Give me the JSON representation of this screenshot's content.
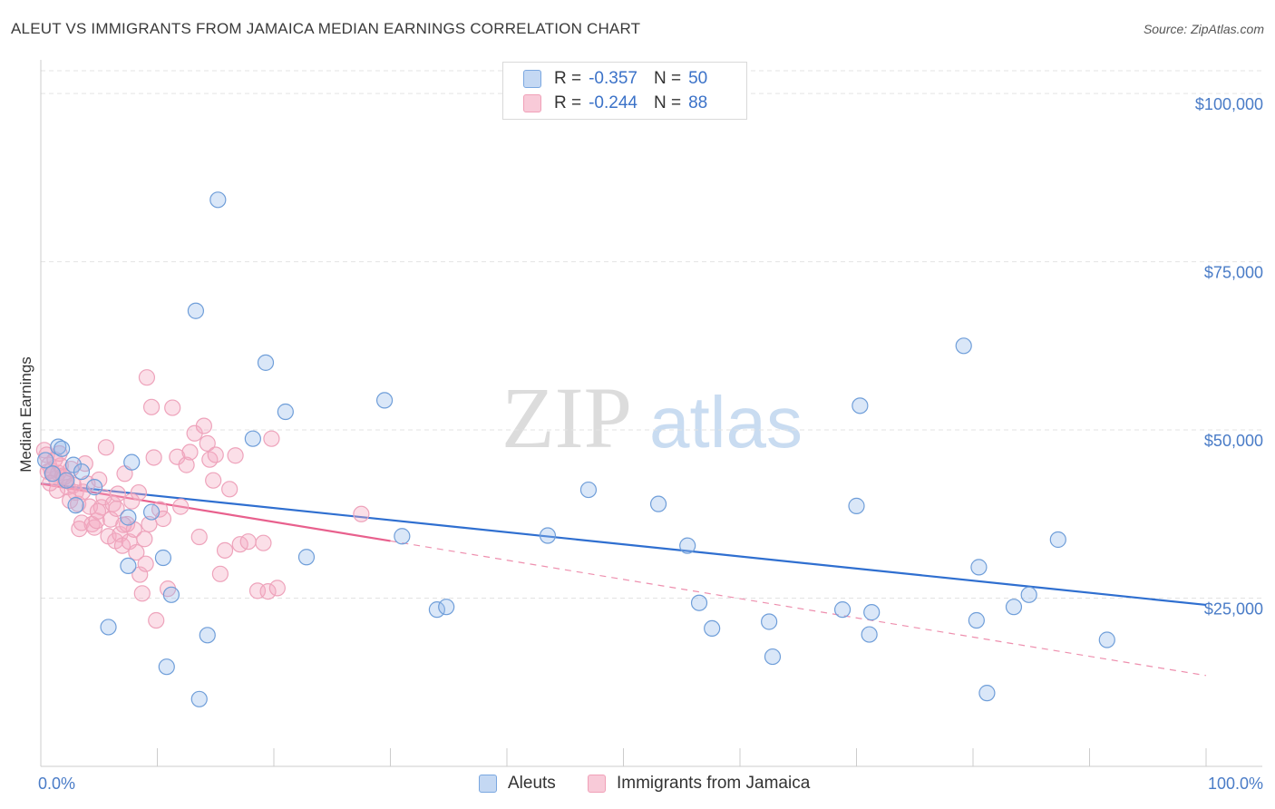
{
  "header": {
    "title": "ALEUT VS IMMIGRANTS FROM JAMAICA MEDIAN EARNINGS CORRELATION CHART",
    "source": "Source: ZipAtlas.com"
  },
  "watermark": {
    "zip": "ZIP",
    "atlas": "atlas"
  },
  "legend": {
    "rows": [
      {
        "r_label": "R =",
        "r_value": "-0.357",
        "n_label": "N =",
        "n_value": "50",
        "color": "#7aa7e0"
      },
      {
        "r_label": "R =",
        "r_value": "-0.244",
        "n_label": "N =",
        "n_value": "88",
        "color": "#f0a0b8"
      }
    ]
  },
  "bottom_legend": {
    "aleuts": "Aleuts",
    "jamaica": "Immigrants from Jamaica"
  },
  "chart_data": {
    "type": "scatter",
    "title": "ALEUT VS IMMIGRANTS FROM JAMAICA MEDIAN EARNINGS CORRELATION CHART",
    "ylabel": "Median Earnings",
    "xlim": [
      0,
      100
    ],
    "ylim": [
      0,
      105000
    ],
    "x_tick_labels": [
      "0.0%",
      "100.0%"
    ],
    "y_ticks": [
      25000,
      50000,
      75000,
      100000
    ],
    "y_tick_labels": [
      "$25,000",
      "$50,000",
      "$75,000",
      "$100,000"
    ],
    "grid": "horizontal dashed",
    "series": [
      {
        "name": "Aleuts",
        "color": "#7aa7e0",
        "trend": {
          "x": [
            0,
            100
          ],
          "y": [
            42000,
            24000
          ],
          "style": "solid"
        },
        "points": [
          [
            1.5,
            47500
          ],
          [
            1.8,
            47200
          ],
          [
            2.8,
            44800
          ],
          [
            3.0,
            38800
          ],
          [
            3.5,
            43800
          ],
          [
            4.6,
            41500
          ],
          [
            5.8,
            20700
          ],
          [
            7.5,
            37000
          ],
          [
            7.5,
            29800
          ],
          [
            7.8,
            45200
          ],
          [
            9.5,
            37800
          ],
          [
            10.5,
            31000
          ],
          [
            10.8,
            14800
          ],
          [
            11.2,
            25500
          ],
          [
            13.3,
            67700
          ],
          [
            13.6,
            10000
          ],
          [
            14.3,
            19500
          ],
          [
            15.2,
            84200
          ],
          [
            18.2,
            48700
          ],
          [
            19.3,
            60000
          ],
          [
            21.0,
            52700
          ],
          [
            22.8,
            31100
          ],
          [
            29.5,
            54400
          ],
          [
            31.0,
            34200
          ],
          [
            34.0,
            23300
          ],
          [
            34.8,
            23700
          ],
          [
            43.5,
            34300
          ],
          [
            47.0,
            41100
          ],
          [
            53.0,
            39000
          ],
          [
            55.5,
            32800
          ],
          [
            56.5,
            24300
          ],
          [
            57.6,
            20500
          ],
          [
            62.5,
            21500
          ],
          [
            62.8,
            16300
          ],
          [
            68.8,
            23300
          ],
          [
            70.3,
            53600
          ],
          [
            71.3,
            22900
          ],
          [
            71.1,
            19600
          ],
          [
            70.0,
            38700
          ],
          [
            79.2,
            62500
          ],
          [
            80.3,
            21700
          ],
          [
            80.5,
            29600
          ],
          [
            81.2,
            10900
          ],
          [
            83.5,
            23700
          ],
          [
            84.8,
            25500
          ],
          [
            87.3,
            33700
          ],
          [
            91.5,
            18800
          ],
          [
            0.4,
            45500
          ],
          [
            1.0,
            43500
          ],
          [
            2.2,
            42500
          ]
        ]
      },
      {
        "name": "Immigrants from Jamaica",
        "color": "#f0a0b8",
        "trend": {
          "x": [
            0,
            30
          ],
          "y": [
            42000,
            33500
          ],
          "style": "solid",
          "extended_x": [
            30,
            100
          ],
          "extended_y": [
            33500,
            13500
          ],
          "extended_style": "dashed"
        },
        "points": [
          [
            0.3,
            47000
          ],
          [
            0.5,
            46300
          ],
          [
            0.7,
            44800
          ],
          [
            0.9,
            44000
          ],
          [
            1.1,
            43500
          ],
          [
            1.3,
            42800
          ],
          [
            1.5,
            43600
          ],
          [
            1.7,
            44700
          ],
          [
            1.9,
            43200
          ],
          [
            2.1,
            42500
          ],
          [
            2.3,
            41500
          ],
          [
            2.5,
            39500
          ],
          [
            2.8,
            41800
          ],
          [
            3.0,
            40700
          ],
          [
            3.2,
            39000
          ],
          [
            3.3,
            35300
          ],
          [
            3.5,
            36200
          ],
          [
            3.8,
            45000
          ],
          [
            4.0,
            42000
          ],
          [
            4.2,
            38600
          ],
          [
            4.4,
            36000
          ],
          [
            4.6,
            35500
          ],
          [
            4.8,
            36500
          ],
          [
            5.0,
            42600
          ],
          [
            5.2,
            38500
          ],
          [
            5.4,
            40000
          ],
          [
            5.6,
            47400
          ],
          [
            5.8,
            34200
          ],
          [
            6.0,
            36700
          ],
          [
            6.2,
            39000
          ],
          [
            6.4,
            33500
          ],
          [
            6.6,
            40500
          ],
          [
            6.8,
            34500
          ],
          [
            7.0,
            32800
          ],
          [
            7.2,
            43500
          ],
          [
            7.4,
            36000
          ],
          [
            7.6,
            33400
          ],
          [
            7.8,
            39400
          ],
          [
            8.0,
            35200
          ],
          [
            8.2,
            31800
          ],
          [
            8.5,
            28500
          ],
          [
            8.7,
            25700
          ],
          [
            8.9,
            33800
          ],
          [
            9.1,
            57800
          ],
          [
            9.3,
            36000
          ],
          [
            9.5,
            53400
          ],
          [
            9.7,
            45900
          ],
          [
            9.9,
            21700
          ],
          [
            10.2,
            38200
          ],
          [
            10.5,
            36800
          ],
          [
            10.9,
            26400
          ],
          [
            11.3,
            53300
          ],
          [
            11.7,
            46000
          ],
          [
            12.5,
            44800
          ],
          [
            12.8,
            46700
          ],
          [
            13.2,
            49500
          ],
          [
            14.0,
            50600
          ],
          [
            14.3,
            48000
          ],
          [
            14.5,
            45600
          ],
          [
            14.8,
            42500
          ],
          [
            15.0,
            46300
          ],
          [
            15.4,
            28600
          ],
          [
            15.8,
            32100
          ],
          [
            16.2,
            41200
          ],
          [
            16.7,
            46200
          ],
          [
            17.1,
            33000
          ],
          [
            18.6,
            26100
          ],
          [
            19.1,
            33200
          ],
          [
            19.5,
            26000
          ],
          [
            19.8,
            48700
          ],
          [
            20.3,
            26500
          ],
          [
            27.5,
            37500
          ],
          [
            0.6,
            43800
          ],
          [
            1.2,
            45600
          ],
          [
            1.4,
            41000
          ],
          [
            1.6,
            46500
          ],
          [
            2.0,
            43000
          ],
          [
            2.6,
            44200
          ],
          [
            3.6,
            40800
          ],
          [
            4.9,
            37900
          ],
          [
            6.5,
            38300
          ],
          [
            7.1,
            35900
          ],
          [
            8.4,
            40700
          ],
          [
            9.0,
            30100
          ],
          [
            12.0,
            38600
          ],
          [
            13.6,
            34100
          ],
          [
            17.8,
            33400
          ],
          [
            0.8,
            42100
          ]
        ]
      }
    ]
  }
}
